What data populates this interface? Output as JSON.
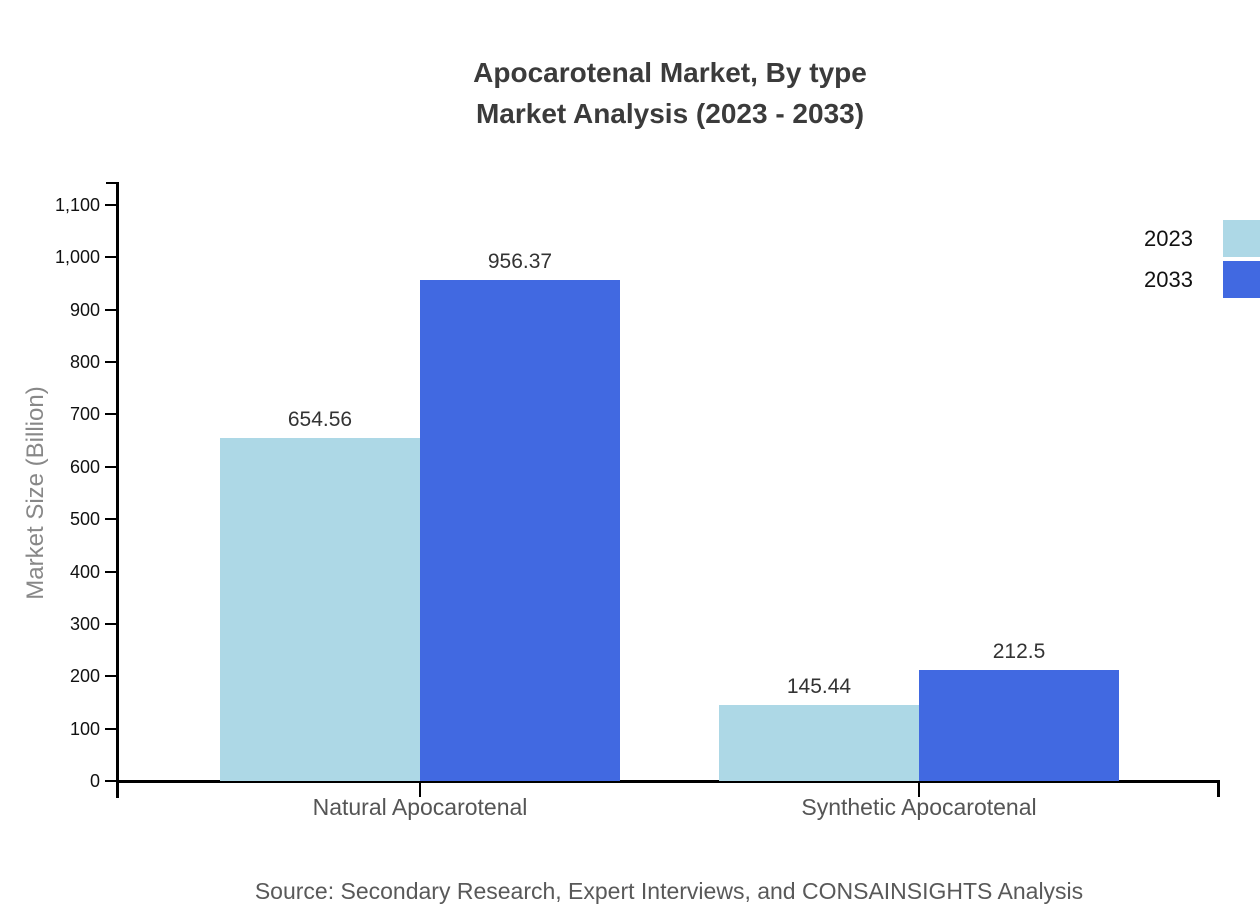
{
  "chart_data": {
    "type": "bar",
    "title": "Apocarotenal Market, By type",
    "subtitle": "Market Analysis (2023 - 2033)",
    "source": "Source: Secondary Research, Expert Interviews, and CONSAINSIGHTS Analysis",
    "categories": [
      "Natural Apocarotenal",
      "Synthetic Apocarotenal"
    ],
    "series": [
      {
        "name": "2023",
        "color": "#ADD8E6",
        "values": [
          654.56,
          145.44
        ]
      },
      {
        "name": "2033",
        "color": "#4169E1",
        "values": [
          956.37,
          212.5
        ]
      }
    ],
    "value_labels": [
      [
        "654.56",
        "145.44"
      ],
      [
        "956.37",
        "212.5"
      ]
    ],
    "xlabel": "",
    "ylabel": "Market Size (Billion)",
    "ylim": [
      0,
      1100
    ],
    "ytick_step": 100,
    "ytick_labels": [
      "0",
      "100",
      "200",
      "300",
      "400",
      "500",
      "600",
      "700",
      "800",
      "900",
      "1,000",
      "1,100"
    ],
    "grid": false,
    "legend_position": "top-right",
    "axis_color": "#000000",
    "text_colors": {
      "title": "#3b3b3b",
      "tick_labels": "#111111",
      "category_labels": "#555555",
      "value_labels": "#333333",
      "ylabel": "#888888",
      "source": "#595959"
    }
  }
}
